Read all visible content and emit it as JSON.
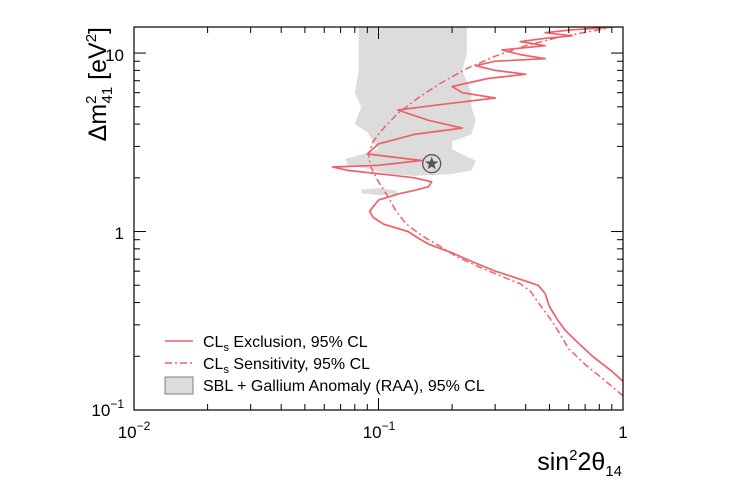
{
  "chart_data": {
    "type": "line",
    "scale": {
      "x": "log",
      "y": "log"
    },
    "xlim": [
      0.01,
      1
    ],
    "ylim": [
      0.1,
      14
    ],
    "xlabel": {
      "base": "sin",
      "sup": "2",
      "mid": "2θ",
      "sub": "14"
    },
    "ylabel": {
      "base": "Δm",
      "sup": "2",
      "sub": "41",
      "unit_pre": " [eV",
      "unit_sup": "2",
      "unit_post": "]"
    },
    "x_ticks": [
      {
        "value": 0.01,
        "mantissa": "10",
        "exp": "−2"
      },
      {
        "value": 0.1,
        "mantissa": "10",
        "exp": "−1"
      },
      {
        "value": 1,
        "mantissa": "1",
        "exp": ""
      }
    ],
    "y_ticks": [
      {
        "value": 0.1,
        "mantissa": "10",
        "exp": "−1"
      },
      {
        "value": 1,
        "mantissa": "1",
        "exp": ""
      },
      {
        "value": 10,
        "mantissa": "10",
        "exp": ""
      }
    ],
    "colors": {
      "exclusion": "#f0606a",
      "sensitivity": "#f0606a",
      "band_fill": "#dcdcdc",
      "band_edge": "#808080",
      "marker": "#555555"
    },
    "best_fit": {
      "x": 0.165,
      "y": 2.4
    },
    "series": [
      {
        "name": "exclusion",
        "label_main": "CL",
        "label_sub": "s",
        "label_rest": " Exclusion, 95% CL",
        "style": "solid",
        "points": [
          [
            1.0,
            0.145
          ],
          [
            0.9,
            0.165
          ],
          [
            0.75,
            0.2
          ],
          [
            0.65,
            0.24
          ],
          [
            0.58,
            0.28
          ],
          [
            0.54,
            0.32
          ],
          [
            0.5,
            0.38
          ],
          [
            0.48,
            0.45
          ],
          [
            0.45,
            0.5
          ],
          [
            0.38,
            0.54
          ],
          [
            0.3,
            0.6
          ],
          [
            0.24,
            0.68
          ],
          [
            0.2,
            0.76
          ],
          [
            0.18,
            0.8
          ],
          [
            0.16,
            0.85
          ],
          [
            0.145,
            0.92
          ],
          [
            0.132,
            1.0
          ],
          [
            0.12,
            1.04
          ],
          [
            0.105,
            1.1
          ],
          [
            0.095,
            1.2
          ],
          [
            0.092,
            1.3
          ],
          [
            0.1,
            1.5
          ],
          [
            0.12,
            1.62
          ],
          [
            0.14,
            1.7
          ],
          [
            0.16,
            1.78
          ],
          [
            0.165,
            1.9
          ],
          [
            0.14,
            2.0
          ],
          [
            0.11,
            2.08
          ],
          [
            0.075,
            2.2
          ],
          [
            0.065,
            2.3
          ],
          [
            0.1,
            2.35
          ],
          [
            0.15,
            2.5
          ],
          [
            0.09,
            2.72
          ],
          [
            0.1,
            3.1
          ],
          [
            0.14,
            3.5
          ],
          [
            0.22,
            3.8
          ],
          [
            0.16,
            4.2
          ],
          [
            0.12,
            4.8
          ],
          [
            0.19,
            5.2
          ],
          [
            0.3,
            5.6
          ],
          [
            0.22,
            6.0
          ],
          [
            0.2,
            6.5
          ],
          [
            0.28,
            7.2
          ],
          [
            0.4,
            7.6
          ],
          [
            0.3,
            8.0
          ],
          [
            0.25,
            8.5
          ],
          [
            0.3,
            9.0
          ],
          [
            0.48,
            9.3
          ],
          [
            0.38,
            9.8
          ],
          [
            0.32,
            10.4
          ],
          [
            0.48,
            11.0
          ],
          [
            0.38,
            11.6
          ],
          [
            0.48,
            12.1
          ],
          [
            0.62,
            12.5
          ],
          [
            0.48,
            13.0
          ],
          [
            0.62,
            13.5
          ],
          [
            0.8,
            13.8
          ],
          [
            0.9,
            14.0
          ]
        ]
      },
      {
        "name": "sensitivity",
        "label_main": "CL",
        "label_sub": "s",
        "label_rest": " Sensitivity, 95% CL",
        "style": "dashdot",
        "points": [
          [
            1.0,
            0.12
          ],
          [
            0.85,
            0.145
          ],
          [
            0.7,
            0.18
          ],
          [
            0.6,
            0.22
          ],
          [
            0.55,
            0.27
          ],
          [
            0.5,
            0.33
          ],
          [
            0.45,
            0.4
          ],
          [
            0.42,
            0.46
          ],
          [
            0.38,
            0.51
          ],
          [
            0.32,
            0.56
          ],
          [
            0.26,
            0.63
          ],
          [
            0.21,
            0.72
          ],
          [
            0.18,
            0.82
          ],
          [
            0.15,
            0.95
          ],
          [
            0.13,
            1.1
          ],
          [
            0.118,
            1.3
          ],
          [
            0.11,
            1.55
          ],
          [
            0.1,
            1.9
          ],
          [
            0.093,
            2.3
          ],
          [
            0.091,
            2.7
          ],
          [
            0.095,
            3.2
          ],
          [
            0.105,
            3.8
          ],
          [
            0.12,
            4.6
          ],
          [
            0.145,
            5.6
          ],
          [
            0.18,
            6.8
          ],
          [
            0.23,
            8.2
          ],
          [
            0.3,
            9.6
          ],
          [
            0.4,
            11.0
          ],
          [
            0.55,
            12.3
          ],
          [
            0.8,
            13.5
          ],
          [
            0.9,
            14.0
          ]
        ]
      }
    ],
    "band": {
      "name": "allowed-region",
      "label": "SBL + Gallium Anomaly (RAA), 95% CL",
      "regions": [
        [
          [
            0.083,
            14
          ],
          [
            0.23,
            14
          ],
          [
            0.23,
            10
          ],
          [
            0.22,
            8
          ],
          [
            0.24,
            6
          ],
          [
            0.24,
            5
          ],
          [
            0.25,
            4.2
          ],
          [
            0.24,
            3.5
          ],
          [
            0.2,
            3.2
          ],
          [
            0.2,
            2.9
          ],
          [
            0.22,
            2.7
          ],
          [
            0.25,
            2.5
          ],
          [
            0.24,
            2.2
          ],
          [
            0.2,
            2.1
          ],
          [
            0.14,
            2.05
          ],
          [
            0.11,
            2.1
          ],
          [
            0.09,
            2.25
          ],
          [
            0.075,
            2.35
          ],
          [
            0.073,
            2.55
          ],
          [
            0.09,
            2.75
          ],
          [
            0.1,
            2.9
          ],
          [
            0.095,
            3.2
          ],
          [
            0.09,
            3.6
          ],
          [
            0.08,
            4.0
          ],
          [
            0.085,
            5.0
          ],
          [
            0.08,
            6.0
          ],
          [
            0.083,
            8.0
          ],
          [
            0.083,
            10.0
          ]
        ],
        [
          [
            0.085,
            1.64
          ],
          [
            0.1,
            1.6
          ],
          [
            0.12,
            1.62
          ],
          [
            0.118,
            1.7
          ],
          [
            0.1,
            1.75
          ],
          [
            0.085,
            1.72
          ]
        ]
      ]
    }
  }
}
